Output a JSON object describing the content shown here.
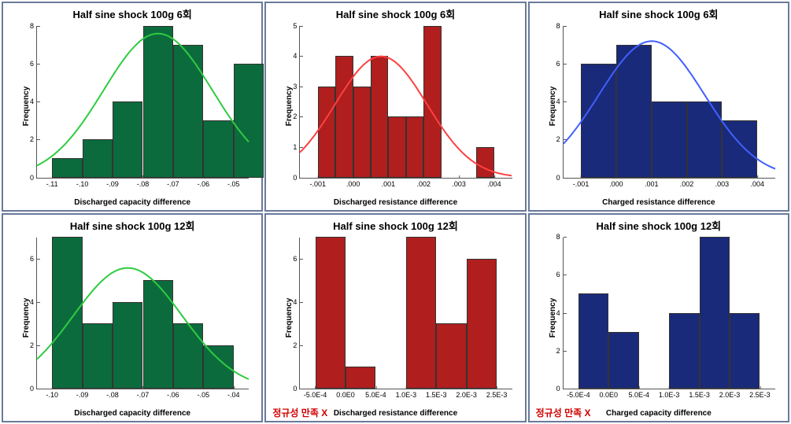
{
  "grid": {
    "rows": 2,
    "cols": 3
  },
  "panels": [
    {
      "id": "p0",
      "type": "histogram",
      "title": "Half sine shock 100g 6회",
      "xlabel": "Discharged capacity difference",
      "ylabel": "Frequency",
      "bar_color": "#0c6b3d",
      "curve_color": "#2ecc40",
      "show_curve": true,
      "ylim": [
        0,
        8
      ],
      "yticks": [
        0,
        2,
        4,
        6,
        8
      ],
      "xlim": [
        -0.115,
        -0.045
      ],
      "xticks": [
        -0.11,
        -0.1,
        -0.09,
        -0.08,
        -0.07,
        -0.06,
        -0.05
      ],
      "xtick_labels": [
        "-.11",
        "-.10",
        "-.09",
        "-.08",
        "-.07",
        "-.06",
        "-.05"
      ],
      "bin_width": 0.01,
      "bin_lefts": [
        -0.11,
        -0.1,
        -0.09,
        -0.08,
        -0.07,
        -0.06,
        -0.05
      ],
      "values": [
        1,
        2,
        4,
        8,
        7,
        3,
        6
      ],
      "curve_mean": -0.075,
      "curve_sd": 0.018,
      "curve_peak": 7.6,
      "annotation": null
    },
    {
      "id": "p1",
      "type": "histogram",
      "title": "Half sine shock 100g 6회",
      "xlabel": "Discharged resistance difference",
      "ylabel": "Frequency",
      "bar_color": "#b01e1e",
      "curve_color": "#ff4040",
      "show_curve": true,
      "ylim": [
        0,
        5
      ],
      "yticks": [
        0,
        1,
        2,
        3,
        4,
        5
      ],
      "xlim": [
        -0.0015,
        0.0045
      ],
      "xticks": [
        -0.001,
        0.0,
        0.001,
        0.002,
        0.003,
        0.004
      ],
      "xtick_labels": [
        "-.001",
        ".000",
        ".001",
        ".002",
        ".003",
        ".004"
      ],
      "bin_width": 0.0005,
      "bin_lefts": [
        -0.001,
        -0.0005,
        0.0,
        0.0005,
        0.001,
        0.0015,
        0.002,
        0.0025,
        0.003,
        0.0035
      ],
      "values": [
        3,
        4,
        3,
        4,
        2,
        2,
        5,
        0,
        0,
        1
      ],
      "curve_mean": 0.0008,
      "curve_sd": 0.0013,
      "curve_peak": 4.0,
      "annotation": null
    },
    {
      "id": "p2",
      "type": "histogram",
      "title": "Half sine shock 100g 6회",
      "xlabel": "Charged resistance difference",
      "ylabel": "Frequency",
      "bar_color": "#1a2a7a",
      "curve_color": "#4060ff",
      "show_curve": true,
      "ylim": [
        0,
        8
      ],
      "yticks": [
        0,
        2,
        4,
        6,
        8
      ],
      "xlim": [
        -0.0015,
        0.0045
      ],
      "xticks": [
        -0.001,
        0.0,
        0.001,
        0.002,
        0.003,
        0.004
      ],
      "xtick_labels": [
        "-.001",
        ".000",
        ".001",
        ".002",
        ".003",
        ".004"
      ],
      "bin_width": 0.001,
      "bin_lefts": [
        -0.001,
        0.0,
        0.001,
        0.002,
        0.003
      ],
      "values": [
        6,
        7,
        4,
        4,
        3
      ],
      "curve_mean": 0.001,
      "curve_sd": 0.0015,
      "curve_peak": 7.2,
      "annotation": null
    },
    {
      "id": "p3",
      "type": "histogram",
      "title": "Half sine shock 100g 12회",
      "xlabel": "Discharged capacity difference",
      "ylabel": "Frequency",
      "bar_color": "#0c6b3d",
      "curve_color": "#2ecc40",
      "show_curve": true,
      "ylim": [
        0,
        7
      ],
      "yticks": [
        0,
        2,
        4,
        6
      ],
      "xlim": [
        -0.105,
        -0.035
      ],
      "xticks": [
        -0.1,
        -0.09,
        -0.08,
        -0.07,
        -0.06,
        -0.05,
        -0.04
      ],
      "xtick_labels": [
        "-.10",
        "-.09",
        "-.08",
        "-.07",
        "-.06",
        "-.05",
        "-.04"
      ],
      "bin_width": 0.01,
      "bin_lefts": [
        -0.1,
        -0.09,
        -0.08,
        -0.07,
        -0.06,
        -0.05,
        -0.04
      ],
      "values": [
        7,
        3,
        4,
        5,
        3,
        2,
        0
      ],
      "curve_mean": -0.075,
      "curve_sd": 0.018,
      "curve_peak": 5.6,
      "annotation": null
    },
    {
      "id": "p4",
      "type": "histogram",
      "title": "Half sine shock 100g 12회",
      "xlabel": "Discharged resistance difference",
      "ylabel": "Frequency",
      "bar_color": "#b01e1e",
      "curve_color": "#ff4040",
      "show_curve": false,
      "ylim": [
        0,
        7
      ],
      "yticks": [
        0,
        2,
        4,
        6
      ],
      "xlim": [
        -0.00075,
        0.00275
      ],
      "xticks": [
        -0.0005,
        0.0,
        0.0005,
        0.001,
        0.0015,
        0.002,
        0.0025
      ],
      "xtick_labels": [
        "-5.0E-4",
        "0.0E0",
        "5.0E-4",
        "1.0E-3",
        "1.5E-3",
        "2.0E-3",
        "2.5E-3"
      ],
      "bin_width": 0.0005,
      "bin_lefts": [
        -0.0005,
        0.0,
        0.0005,
        0.001,
        0.0015,
        0.002
      ],
      "values": [
        7,
        1,
        0,
        7,
        3,
        6
      ],
      "annotation": "정규성 만족 X"
    },
    {
      "id": "p5",
      "type": "histogram",
      "title": "Half sine shock 100g 12회",
      "xlabel": "Charged capacity difference",
      "ylabel": "Frequency",
      "bar_color": "#1a2a7a",
      "curve_color": "#4060ff",
      "show_curve": false,
      "ylim": [
        0,
        8
      ],
      "yticks": [
        0,
        2,
        4,
        6,
        8
      ],
      "xlim": [
        -0.00075,
        0.00275
      ],
      "xticks": [
        -0.0005,
        0.0,
        0.0005,
        0.001,
        0.0015,
        0.002,
        0.0025
      ],
      "xtick_labels": [
        "-5.0E-4",
        "0.0E0",
        "5.0E-4",
        "1.0E-3",
        "1.5E-3",
        "2.0E-3",
        "2.5E-3"
      ],
      "bin_width": 0.0005,
      "bin_lefts": [
        -0.0005,
        0.0,
        0.0005,
        0.001,
        0.0015,
        0.002
      ],
      "values": [
        5,
        3,
        0,
        4,
        8,
        4
      ],
      "annotation": "정규성 만족 X"
    }
  ],
  "title_fontsize": 13,
  "label_fontsize": 10,
  "tick_fontsize": 9,
  "panel_border_color": "#6a7a9a",
  "axis_color": "#555555",
  "background_color": "#ffffff"
}
